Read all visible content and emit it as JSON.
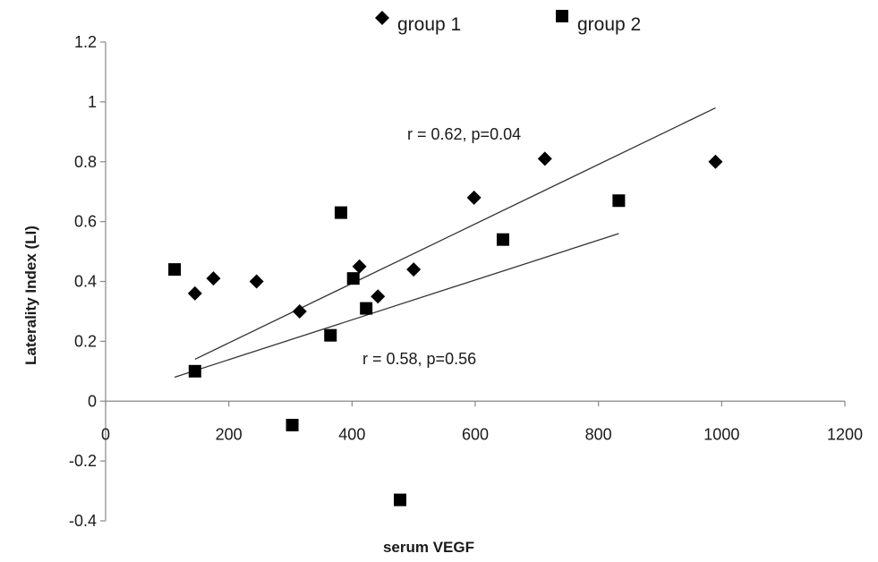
{
  "chart_data": {
    "type": "scatter",
    "title": "",
    "xlabel": "serum VEGF",
    "ylabel": "Laterality  Index (LI)",
    "xlim": [
      0,
      1200
    ],
    "ylim": [
      -0.4,
      1.2
    ],
    "x_ticks": [
      0,
      200,
      400,
      600,
      800,
      1000,
      1200
    ],
    "y_ticks": [
      -0.4,
      -0.2,
      0,
      0.2,
      0.4,
      0.6,
      0.8,
      1,
      1.2
    ],
    "x_tick_labels": [
      "0",
      "200",
      "400",
      "600",
      "800",
      "1000",
      "1200"
    ],
    "y_tick_labels": [
      "-0.4",
      "-0.2",
      "0",
      "0.2",
      "0.4",
      "0.6",
      "0.8",
      "1",
      "1.2"
    ],
    "grid": false,
    "legend_position": "top",
    "series": [
      {
        "name": "group 1",
        "marker": "diamond",
        "color": "#000000",
        "points": [
          {
            "x": 145,
            "y": 0.36
          },
          {
            "x": 175,
            "y": 0.41
          },
          {
            "x": 245,
            "y": 0.4
          },
          {
            "x": 315,
            "y": 0.3
          },
          {
            "x": 412,
            "y": 0.45
          },
          {
            "x": 442,
            "y": 0.35
          },
          {
            "x": 500,
            "y": 0.44
          },
          {
            "x": 598,
            "y": 0.68
          },
          {
            "x": 713,
            "y": 0.81
          },
          {
            "x": 990,
            "y": 0.8
          }
        ],
        "trendline": {
          "x_start": 145,
          "y_start": 0.14,
          "x_end": 990,
          "y_end": 0.98
        },
        "annotation": "r = 0.62, p=0.04"
      },
      {
        "name": "group 2",
        "marker": "square",
        "color": "#000000",
        "points": [
          {
            "x": 112,
            "y": 0.44
          },
          {
            "x": 145,
            "y": 0.1
          },
          {
            "x": 303,
            "y": -0.08
          },
          {
            "x": 365,
            "y": 0.22
          },
          {
            "x": 382,
            "y": 0.63
          },
          {
            "x": 402,
            "y": 0.41
          },
          {
            "x": 423,
            "y": 0.31
          },
          {
            "x": 478,
            "y": -0.33
          },
          {
            "x": 645,
            "y": 0.54
          },
          {
            "x": 833,
            "y": 0.67
          }
        ],
        "trendline": {
          "x_start": 112,
          "y_start": 0.08,
          "x_end": 833,
          "y_end": 0.56
        },
        "annotation": "r = 0.58, p=0.56"
      }
    ]
  }
}
